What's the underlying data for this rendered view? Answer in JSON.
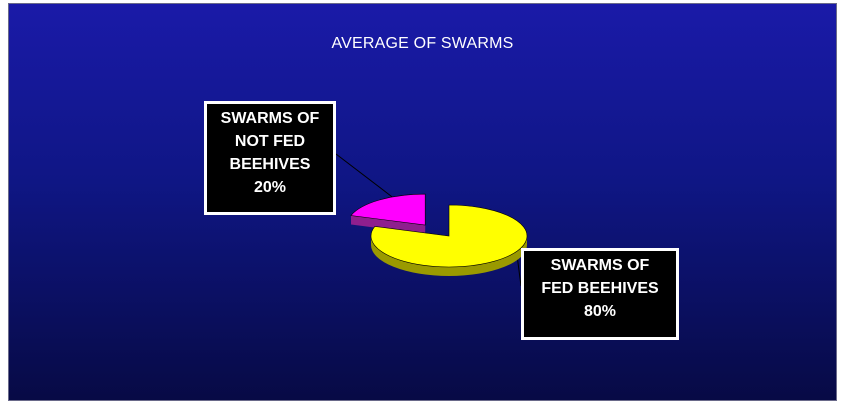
{
  "chart_data": {
    "type": "pie",
    "title": "AVERAGE OF SWARMS",
    "slices": [
      {
        "label_lines": [
          "SWARMS OF",
          "FED BEEHIVES",
          "80%"
        ],
        "value": 80,
        "color": "#ffff00",
        "side_color": "#9a9a00",
        "exploded": false
      },
      {
        "label_lines": [
          "SWARMS OF",
          "NOT FED",
          "BEEHIVES",
          "20%"
        ],
        "value": 20,
        "color": "#ff00ff",
        "side_color": "#8e1f8e",
        "exploded": true
      }
    ],
    "style": "3d-exploded",
    "background_color": "#0f1684",
    "leader_line_color": "#000000"
  }
}
